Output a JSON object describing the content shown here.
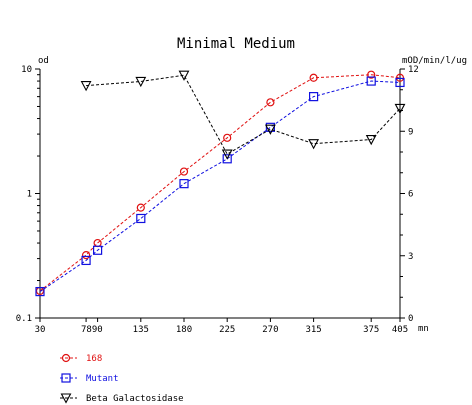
{
  "chart_data": {
    "type": "line",
    "title": "Minimal Medium",
    "left_axis": {
      "label": "od",
      "scale": "log",
      "range": [
        0.1,
        10
      ],
      "ticks": [
        0.1,
        1,
        10
      ],
      "tick_labels": [
        "0.1",
        "1",
        "10"
      ]
    },
    "right_axis": {
      "label": "mOD/min/l/ug",
      "scale": "linear",
      "range": [
        0,
        12
      ],
      "ticks": [
        0,
        3,
        6,
        9,
        12
      ],
      "tick_labels": [
        "0",
        "3",
        "6",
        "9",
        "12"
      ]
    },
    "x_axis": {
      "unit": "mn",
      "range": [
        30,
        405
      ],
      "ticks": [
        30,
        78,
        90,
        135,
        180,
        225,
        270,
        315,
        375,
        405
      ],
      "tick_labels": [
        "30",
        "7890",
        "135",
        "180",
        "225",
        "270",
        "315",
        "375",
        "405"
      ],
      "tick_label_positions": [
        30,
        84,
        135,
        180,
        225,
        270,
        315,
        375,
        405
      ]
    },
    "series": [
      {
        "name": "168",
        "axis": "left",
        "color": "#e01010",
        "marker": "circle",
        "x": [
          30,
          78,
          90,
          135,
          180,
          225,
          270,
          315,
          375,
          405
        ],
        "y": [
          0.165,
          0.32,
          0.4,
          0.77,
          1.5,
          2.8,
          5.4,
          8.5,
          9.0,
          8.5
        ]
      },
      {
        "name": "Mutant",
        "axis": "left",
        "color": "#1010e0",
        "marker": "square",
        "x": [
          30,
          78,
          90,
          135,
          180,
          225,
          270,
          315,
          375,
          405
        ],
        "y": [
          0.163,
          0.29,
          0.35,
          0.63,
          1.2,
          1.9,
          3.4,
          6.0,
          8.0,
          7.8
        ]
      },
      {
        "name": "Beta Galactosidase",
        "axis": "right",
        "color": "#000000",
        "marker": "triangle-down",
        "x": [
          78,
          135,
          180,
          225,
          270,
          315,
          375,
          405
        ],
        "y": [
          11.2,
          11.4,
          11.7,
          7.9,
          9.1,
          8.4,
          8.6,
          10.1
        ]
      }
    ],
    "grid": false,
    "legend_position": "bottom-left"
  }
}
